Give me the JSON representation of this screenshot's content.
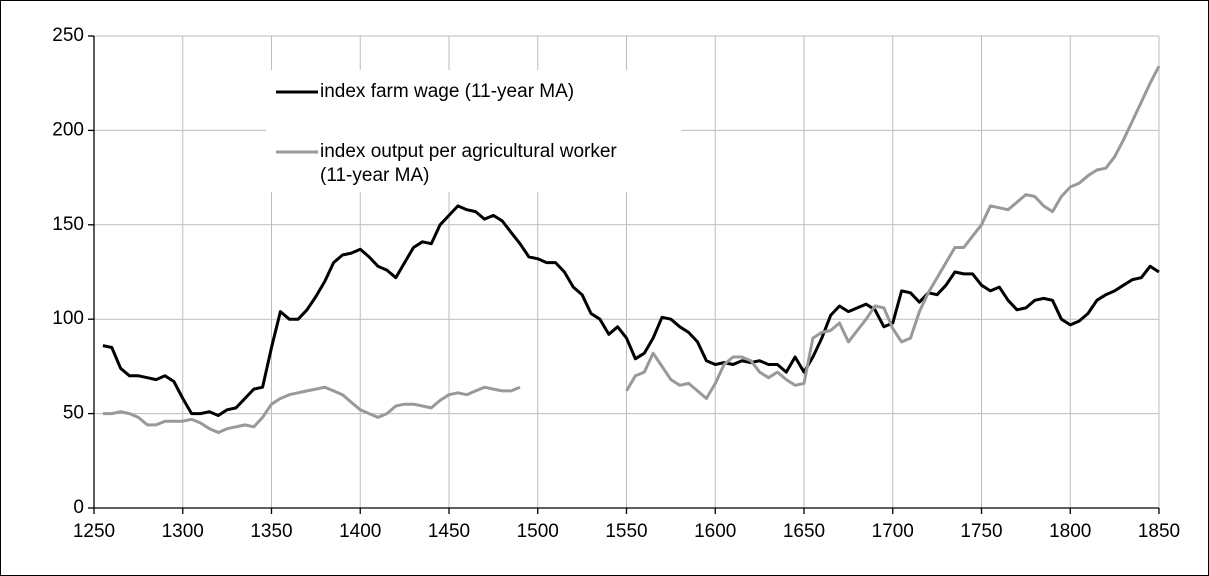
{
  "chart_data": {
    "type": "line",
    "x": [
      1255,
      1260,
      1265,
      1270,
      1275,
      1280,
      1285,
      1290,
      1295,
      1300,
      1305,
      1310,
      1315,
      1320,
      1325,
      1330,
      1335,
      1340,
      1345,
      1350,
      1355,
      1360,
      1365,
      1370,
      1375,
      1380,
      1385,
      1390,
      1395,
      1400,
      1405,
      1410,
      1415,
      1420,
      1425,
      1430,
      1435,
      1440,
      1445,
      1450,
      1455,
      1460,
      1465,
      1470,
      1475,
      1480,
      1485,
      1490,
      1495,
      1500,
      1505,
      1510,
      1515,
      1520,
      1525,
      1530,
      1535,
      1540,
      1545,
      1550,
      1555,
      1560,
      1565,
      1570,
      1575,
      1580,
      1585,
      1590,
      1595,
      1600,
      1605,
      1610,
      1615,
      1620,
      1625,
      1630,
      1635,
      1640,
      1645,
      1650,
      1655,
      1660,
      1665,
      1670,
      1675,
      1680,
      1685,
      1690,
      1695,
      1700,
      1705,
      1710,
      1715,
      1720,
      1725,
      1730,
      1735,
      1740,
      1745,
      1750,
      1755,
      1760,
      1765,
      1770,
      1775,
      1780,
      1785,
      1790,
      1795,
      1800,
      1805,
      1810,
      1815,
      1820,
      1825,
      1830,
      1835,
      1840,
      1845,
      1850
    ],
    "series": [
      {
        "name": "index farm wage (11-year MA)",
        "color": "#000000",
        "values": [
          86,
          85,
          74,
          70,
          70,
          69,
          68,
          70,
          67,
          58,
          50,
          50,
          51,
          49,
          52,
          53,
          58,
          63,
          64,
          85,
          104,
          100,
          100,
          105,
          112,
          120,
          130,
          134,
          135,
          137,
          133,
          128,
          126,
          122,
          130,
          138,
          141,
          140,
          150,
          155,
          160,
          158,
          157,
          153,
          155,
          152,
          146,
          140,
          133,
          132,
          130,
          130,
          125,
          117,
          113,
          103,
          100,
          92,
          96,
          90,
          79,
          82,
          90,
          101,
          100,
          96,
          93,
          88,
          78,
          76,
          77,
          76,
          78,
          77,
          78,
          76,
          76,
          72,
          80,
          72,
          80,
          90,
          102,
          107,
          104,
          106,
          108,
          105,
          96,
          98,
          115,
          114,
          109,
          114,
          113,
          118,
          125,
          124,
          124,
          118,
          115,
          117,
          110,
          105,
          106,
          110,
          111,
          110,
          100,
          97,
          99,
          103,
          110,
          113,
          115,
          118,
          121,
          122,
          128,
          125
        ]
      },
      {
        "name": "index output per agricultural worker (11-year MA)",
        "color": "#999999",
        "values": [
          50,
          50,
          51,
          50,
          48,
          44,
          44,
          46,
          46,
          46,
          47,
          45,
          42,
          40,
          42,
          43,
          44,
          43,
          48,
          55,
          58,
          60,
          61,
          62,
          63,
          64,
          62,
          60,
          56,
          52,
          50,
          48,
          50,
          54,
          55,
          55,
          54,
          53,
          57,
          60,
          61,
          60,
          62,
          64,
          63,
          62,
          62,
          64,
          null,
          null,
          null,
          null,
          null,
          null,
          null,
          null,
          null,
          null,
          null,
          62,
          70,
          72,
          82,
          75,
          68,
          65,
          66,
          62,
          58,
          66,
          76,
          80,
          80,
          78,
          72,
          69,
          72,
          68,
          65,
          66,
          90,
          93,
          94,
          98,
          88,
          94,
          100,
          107,
          106,
          95,
          88,
          90,
          104,
          114,
          122,
          130,
          138,
          138,
          144,
          150,
          160,
          159,
          158,
          162,
          166,
          165,
          160,
          157,
          165,
          170,
          172,
          176,
          179,
          180,
          186,
          195,
          205,
          215,
          225,
          234
        ]
      }
    ],
    "xlim": [
      1250,
      1850
    ],
    "xticks": [
      1250,
      1300,
      1350,
      1400,
      1450,
      1500,
      1550,
      1600,
      1650,
      1700,
      1750,
      1800,
      1850
    ],
    "ylim": [
      0,
      250
    ],
    "yticks": [
      0,
      50,
      100,
      150,
      200,
      250
    ],
    "grid": true,
    "legend": "upper-left"
  }
}
